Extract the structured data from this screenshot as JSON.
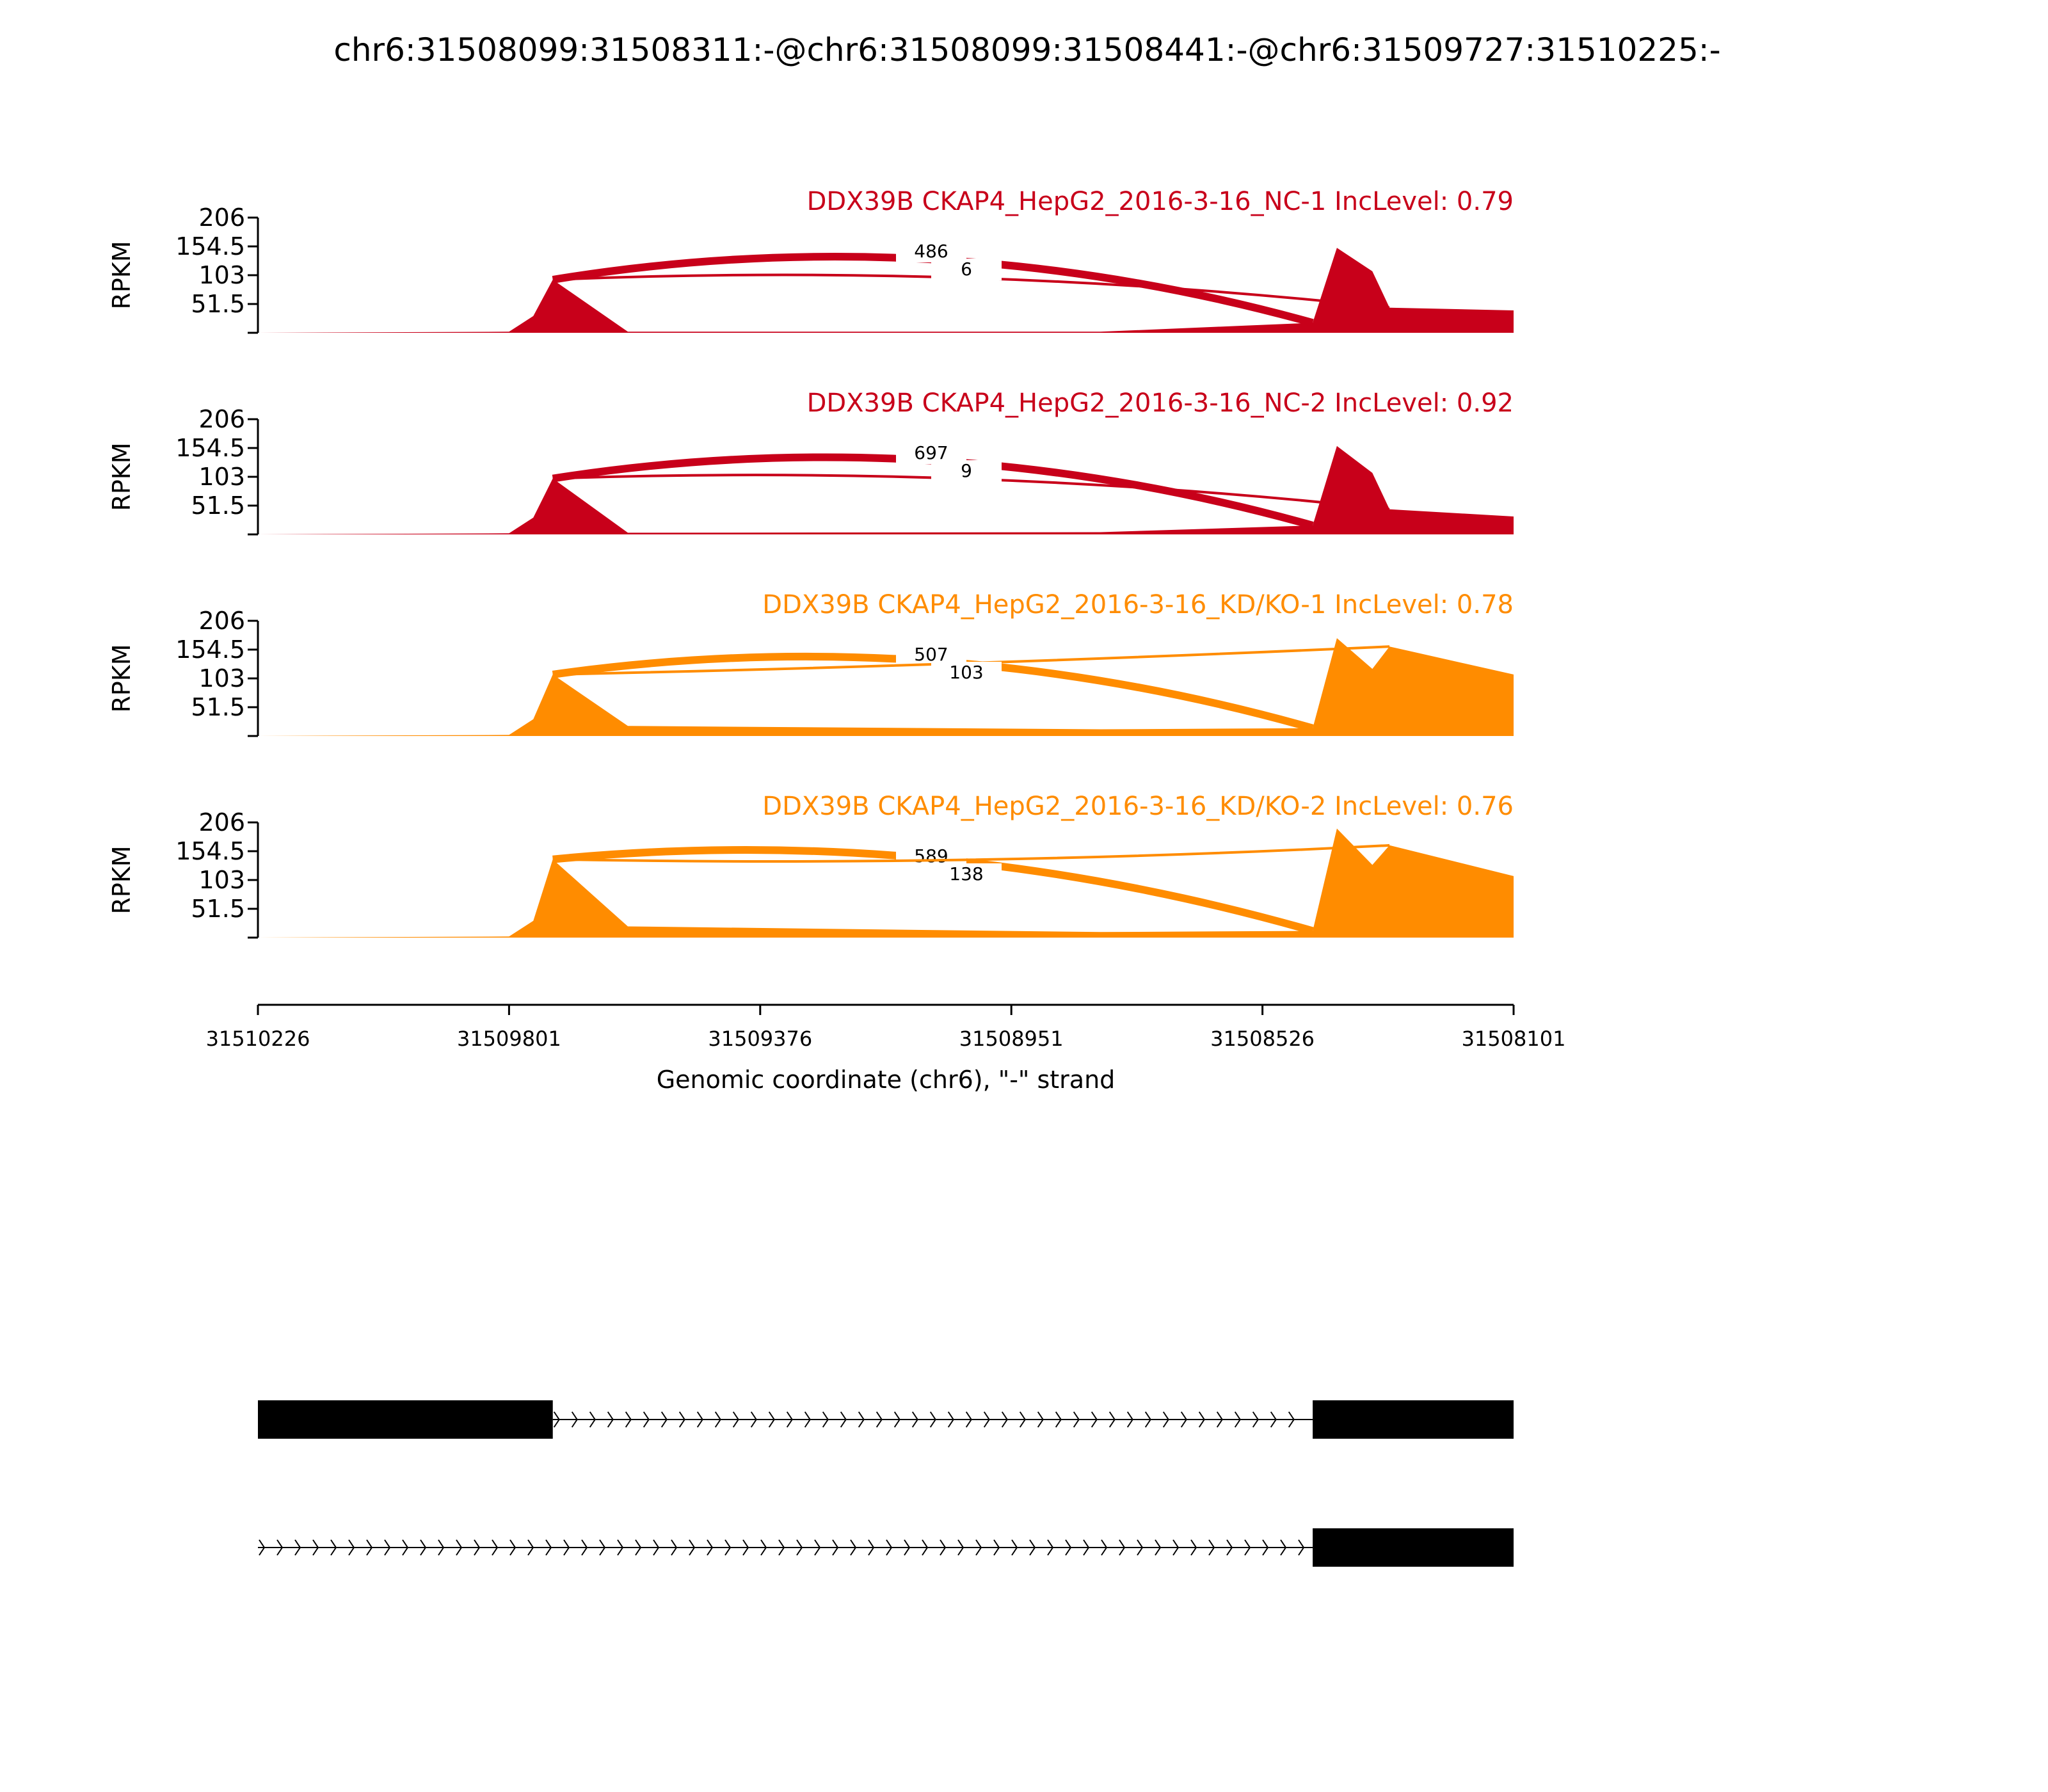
{
  "chart_data": {
    "type": "area",
    "title": "chr6:31508099:31508311:-@chr6:31508099:31508441:-@chr6:31509727:31510225:-",
    "xlabel": "Genomic coordinate (chr6), \"-\" strand",
    "ylabel": "RPKM",
    "x_ticks": [
      "31510226",
      "31509801",
      "31509376",
      "31508951",
      "31508526",
      "31508101"
    ],
    "xlim": [
      31510226,
      31508101
    ],
    "ylim": [
      0,
      206
    ],
    "y_ticks": [
      "206",
      "154.5",
      "103",
      "51.5"
    ],
    "colors": {
      "NC": "#c8001a",
      "KD": "#ff8c00"
    },
    "features": {
      "upstream_exon_end": 31509727,
      "target_exon_start": 31508441,
      "downstream_exon_start": 31508311
    },
    "series": [
      {
        "name": "DDX39B CKAP4_HepG2_2016-3-16_NC-1 IncLevel: 0.79",
        "group": "NC",
        "junctions": [
          {
            "label": "486",
            "from": 31509727,
            "to": 31508441
          },
          {
            "label": "6",
            "from": 31509727,
            "to": 31508311
          }
        ],
        "profile": [
          {
            "x": 31510226,
            "y": 0
          },
          {
            "x": 31509801,
            "y": 2
          },
          {
            "x": 31509760,
            "y": 30
          },
          {
            "x": 31509727,
            "y": 95
          },
          {
            "x": 31509600,
            "y": 2
          },
          {
            "x": 31508800,
            "y": 2
          },
          {
            "x": 31508441,
            "y": 18
          },
          {
            "x": 31508400,
            "y": 152
          },
          {
            "x": 31508340,
            "y": 110
          },
          {
            "x": 31508311,
            "y": 45
          },
          {
            "x": 31508101,
            "y": 40
          }
        ]
      },
      {
        "name": "DDX39B CKAP4_HepG2_2016-3-16_NC-2 IncLevel: 0.92",
        "group": "NC",
        "junctions": [
          {
            "label": "697",
            "from": 31509727,
            "to": 31508441
          },
          {
            "label": "9",
            "from": 31509727,
            "to": 31508311
          }
        ],
        "profile": [
          {
            "x": 31510226,
            "y": 0
          },
          {
            "x": 31509801,
            "y": 2
          },
          {
            "x": 31509760,
            "y": 30
          },
          {
            "x": 31509727,
            "y": 100
          },
          {
            "x": 31509600,
            "y": 3
          },
          {
            "x": 31508800,
            "y": 4
          },
          {
            "x": 31508441,
            "y": 16
          },
          {
            "x": 31508400,
            "y": 158
          },
          {
            "x": 31508340,
            "y": 110
          },
          {
            "x": 31508311,
            "y": 45
          },
          {
            "x": 31508101,
            "y": 32
          }
        ]
      },
      {
        "name": "DDX39B CKAP4_HepG2_2016-3-16_KD/KO-1 IncLevel: 0.78",
        "group": "KD",
        "junctions": [
          {
            "label": "507",
            "from": 31509727,
            "to": 31508441
          },
          {
            "label": "103",
            "from": 31509727,
            "to": 31508311
          }
        ],
        "profile": [
          {
            "x": 31510226,
            "y": 0
          },
          {
            "x": 31509801,
            "y": 2
          },
          {
            "x": 31509760,
            "y": 30
          },
          {
            "x": 31509727,
            "y": 110
          },
          {
            "x": 31509600,
            "y": 18
          },
          {
            "x": 31508800,
            "y": 12
          },
          {
            "x": 31508441,
            "y": 14
          },
          {
            "x": 31508400,
            "y": 175
          },
          {
            "x": 31508340,
            "y": 120
          },
          {
            "x": 31508311,
            "y": 160
          },
          {
            "x": 31508101,
            "y": 110
          }
        ]
      },
      {
        "name": "DDX39B CKAP4_HepG2_2016-3-16_KD/KO-2 IncLevel: 0.76",
        "group": "KD",
        "junctions": [
          {
            "label": "589",
            "from": 31509727,
            "to": 31508441
          },
          {
            "label": "138",
            "from": 31509727,
            "to": 31508311
          }
        ],
        "profile": [
          {
            "x": 31510226,
            "y": 0
          },
          {
            "x": 31509801,
            "y": 2
          },
          {
            "x": 31509760,
            "y": 30
          },
          {
            "x": 31509727,
            "y": 140
          },
          {
            "x": 31509600,
            "y": 20
          },
          {
            "x": 31508800,
            "y": 10
          },
          {
            "x": 31508441,
            "y": 12
          },
          {
            "x": 31508400,
            "y": 195
          },
          {
            "x": 31508340,
            "y": 130
          },
          {
            "x": 31508311,
            "y": 165
          },
          {
            "x": 31508101,
            "y": 110
          }
        ]
      }
    ],
    "transcripts": [
      {
        "exons": [
          {
            "start": 31510226,
            "end": 31509727
          },
          {
            "start": 31508441,
            "end": 31508101
          }
        ],
        "intron": {
          "start": 31509727,
          "end": 31508441
        }
      },
      {
        "exons": [
          {
            "start": 31508441,
            "end": 31508101
          }
        ],
        "intron": {
          "start": 31510226,
          "end": 31508441
        }
      }
    ]
  }
}
